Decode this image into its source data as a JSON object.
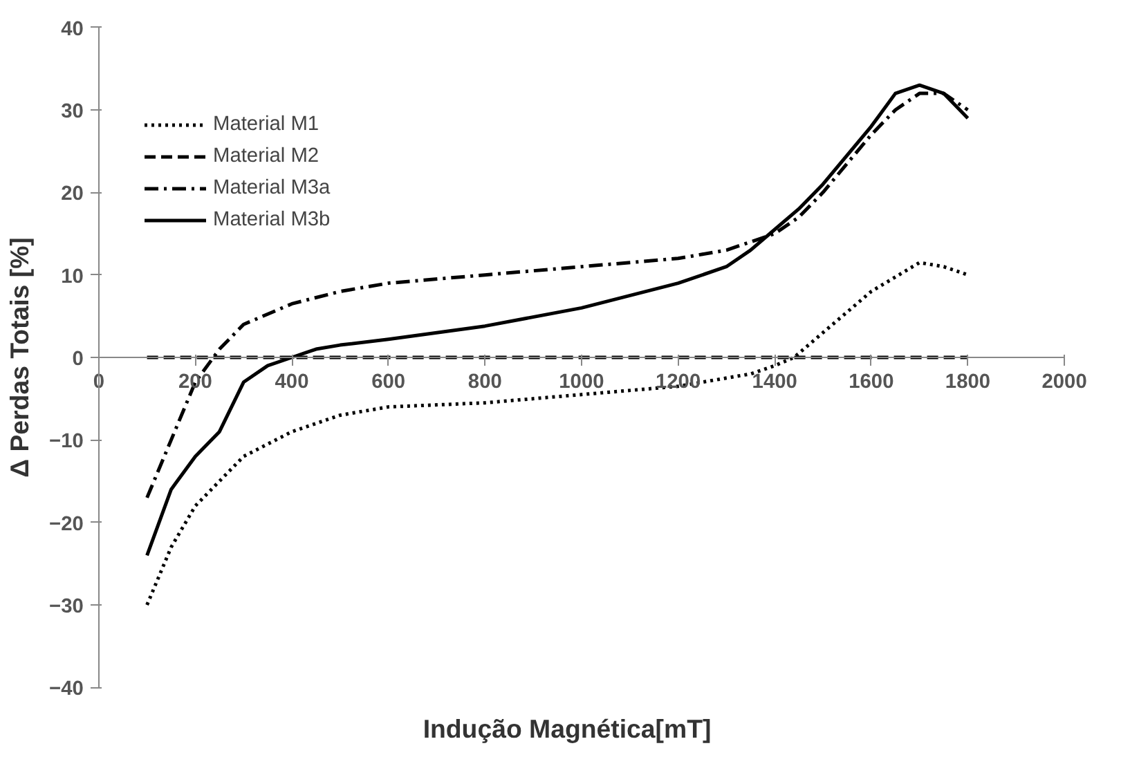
{
  "chart_data": {
    "type": "line",
    "xlabel": "Indução Magnética[mT]",
    "ylabel": "Δ Perdas Totais [%]",
    "xlim": [
      0,
      2000
    ],
    "xticks": [
      0,
      200,
      400,
      600,
      800,
      1000,
      1200,
      1400,
      1600,
      1800,
      2000
    ],
    "ylim": [
      -40,
      40
    ],
    "yticks": [
      -40,
      -30,
      -20,
      -10,
      0,
      10,
      20,
      30,
      40
    ],
    "grid": false,
    "legend": "top left",
    "marker": "none",
    "series": [
      {
        "name": "Material M1",
        "color": "#000000",
        "line_style": "dotted",
        "x": [
          100,
          150,
          200,
          300,
          400,
          500,
          600,
          800,
          1000,
          1200,
          1350,
          1400,
          1440,
          1500,
          1600,
          1700,
          1750,
          1800
        ],
        "values": [
          -30,
          -23,
          -18,
          -12,
          -9,
          -7,
          -6,
          -5.5,
          -4.5,
          -3.5,
          -2,
          -1,
          0,
          3,
          8,
          11.5,
          11,
          10
        ]
      },
      {
        "name": "Material M2",
        "color": "#000000",
        "line_style": "dashed",
        "x": [
          100,
          1800
        ],
        "values": [
          0,
          0
        ]
      },
      {
        "name": "Material M3a",
        "color": "#000000",
        "line_style": "dashdot",
        "x": [
          100,
          150,
          200,
          250,
          300,
          400,
          500,
          600,
          800,
          1000,
          1200,
          1300,
          1400,
          1450,
          1500,
          1600,
          1650,
          1700,
          1750,
          1800
        ],
        "values": [
          -17,
          -10,
          -3,
          1,
          4,
          6.5,
          8,
          9,
          10,
          11,
          12,
          13,
          15,
          17,
          20,
          27,
          30,
          32,
          32,
          30
        ]
      },
      {
        "name": "Material M3b",
        "color": "#000000",
        "line_style": "solid",
        "x": [
          100,
          150,
          200,
          250,
          300,
          350,
          400,
          450,
          500,
          600,
          800,
          1000,
          1200,
          1300,
          1350,
          1400,
          1450,
          1500,
          1600,
          1650,
          1700,
          1750,
          1800
        ],
        "values": [
          -24,
          -16,
          -12,
          -9,
          -3,
          -1,
          0,
          1,
          1.5,
          2.2,
          3.8,
          6,
          9,
          11,
          13,
          15.5,
          18,
          21,
          28,
          32,
          33,
          32,
          29
        ]
      }
    ]
  }
}
